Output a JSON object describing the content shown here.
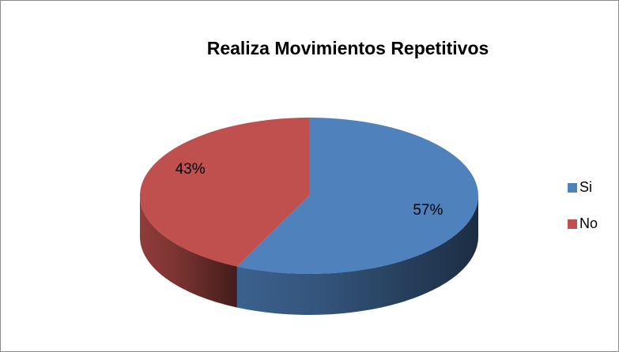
{
  "chart_data": {
    "type": "pie",
    "title": "Realiza Movimientos Repetitivos",
    "categories": [
      "Si",
      "No"
    ],
    "values": [
      57,
      43
    ],
    "value_labels": [
      "57%",
      "43%"
    ],
    "colors": [
      "#4f81bd",
      "#c0504d"
    ],
    "legend": "right",
    "three_d": true
  }
}
